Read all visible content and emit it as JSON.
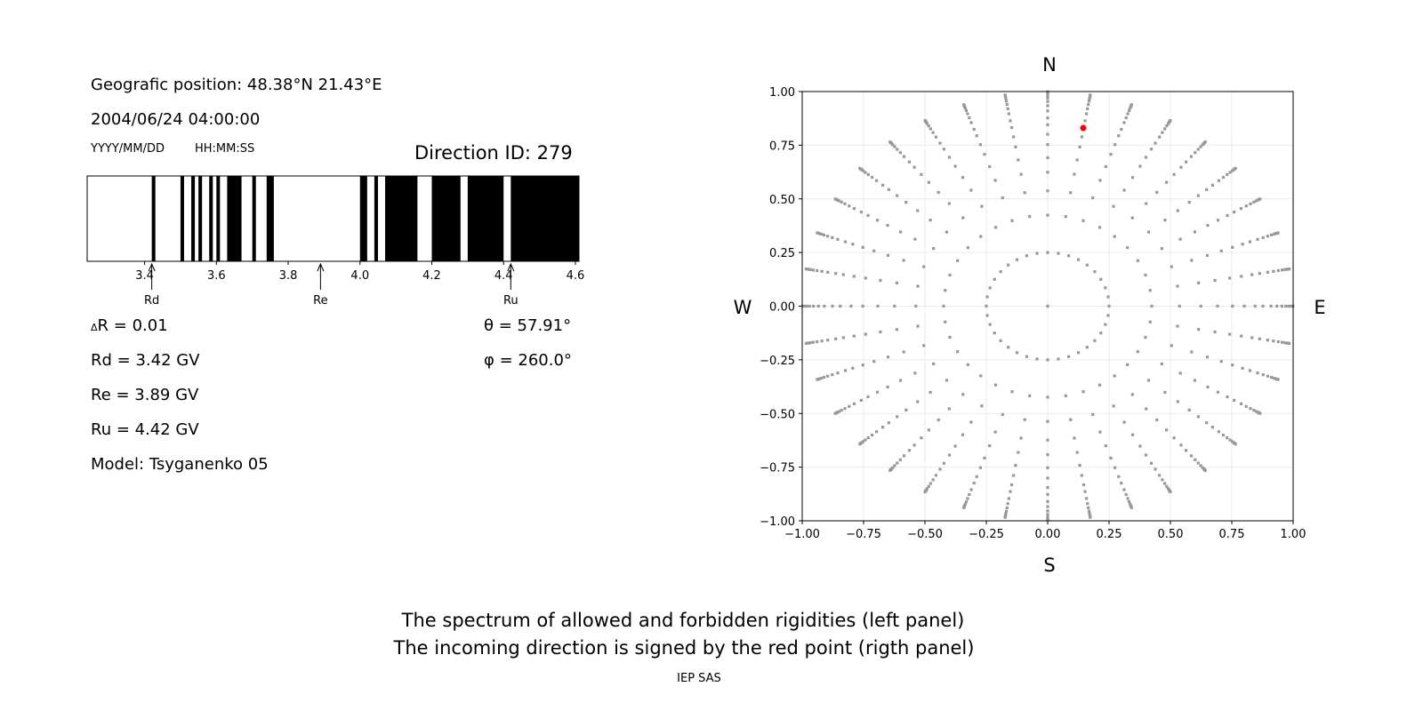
{
  "info": {
    "position": "Geografic position: 48.38°N 21.43°E",
    "datetime": "2004/06/24 04:00:00",
    "date_format": "YYYY/MM/DD",
    "time_format": "HH:MM:SS",
    "direction_id": "Direction ID: 279",
    "delta_r": "R = 0.01",
    "delta_symbol": "Δ",
    "rd": "Rd = 3.42 GV",
    "re": "Re = 3.89 GV",
    "ru": "Ru = 4.42 GV",
    "model": "Model: Tsyganenko 05",
    "theta": "θ = 57.91°",
    "phi": "φ = 260.0°"
  },
  "captions": {
    "line1": "The spectrum of allowed and forbidden rigidities (left panel)",
    "line2": "The incoming direction is signed by the red point (rigth panel)",
    "credit": "IEP SAS"
  },
  "chart_data": [
    {
      "type": "bar",
      "description_kind": "rigidity spectrum (black = forbidden, white = allowed)",
      "xlim": [
        3.24,
        4.61
      ],
      "xticks": [
        3.4,
        3.6,
        3.8,
        4.0,
        4.2,
        4.4,
        4.6
      ],
      "xtick_labels": [
        "3.4",
        "3.6",
        "3.8",
        "4.0",
        "4.2",
        "4.4",
        "4.6"
      ],
      "forbidden_bands": [
        [
          3.42,
          3.43
        ],
        [
          3.5,
          3.51
        ],
        [
          3.53,
          3.54
        ],
        [
          3.55,
          3.56
        ],
        [
          3.58,
          3.59
        ],
        [
          3.6,
          3.61
        ],
        [
          3.63,
          3.67
        ],
        [
          3.7,
          3.71
        ],
        [
          3.74,
          3.76
        ],
        [
          4.0,
          4.02
        ],
        [
          4.04,
          4.05
        ],
        [
          4.07,
          4.16
        ],
        [
          4.2,
          4.28
        ],
        [
          4.3,
          4.4
        ],
        [
          4.42,
          4.61
        ]
      ],
      "colors": {
        "forbidden": "#000000",
        "allowed": "#ffffff"
      },
      "markers": [
        {
          "label": "Rd",
          "value": 3.42
        },
        {
          "label": "Re",
          "value": 3.89
        },
        {
          "label": "Ru",
          "value": 4.42
        }
      ]
    },
    {
      "type": "scatter",
      "xlim": [
        -1.0,
        1.0
      ],
      "ylim": [
        -1.0,
        1.0
      ],
      "ticks": [
        -1.0,
        -0.75,
        -0.5,
        -0.25,
        0.0,
        0.25,
        0.5,
        0.75,
        1.0
      ],
      "tick_labels": [
        "−1.00",
        "−0.75",
        "−0.50",
        "−0.25",
        "0.00",
        "0.25",
        "0.50",
        "0.75",
        "1.00"
      ],
      "grid": true,
      "compass": {
        "north": "N",
        "south": "S",
        "west": "W",
        "east": "E"
      },
      "directions": {
        "center": [
          0,
          0
        ],
        "ring_r": 0.25,
        "ring_azimuth_step_deg": 10,
        "line_azimuth_step_deg": 10,
        "line_r": [
          0.424,
          0.537,
          0.624,
          0.692,
          0.753,
          0.801,
          0.845,
          0.877,
          0.91,
          0.934,
          0.954,
          0.97,
          0.982,
          0.99,
          0.995,
          0.999
        ],
        "color": "#999999"
      },
      "selected_point": {
        "x": 0.145,
        "y": 0.83,
        "color": "#ff0000"
      }
    }
  ]
}
